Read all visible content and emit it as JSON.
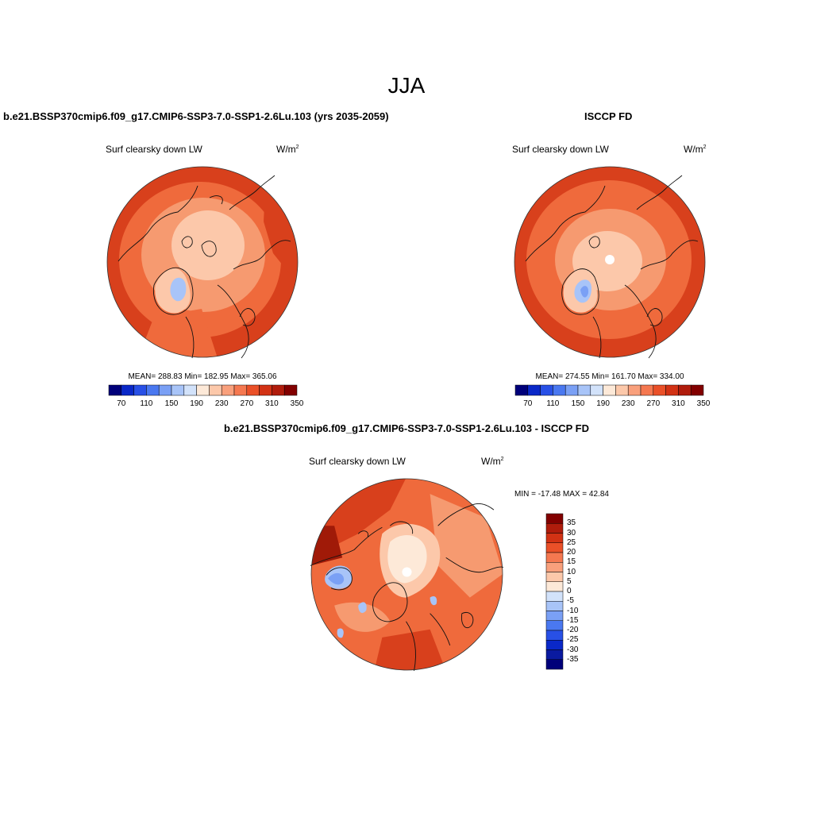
{
  "figure": {
    "title": "JJA",
    "units_base": "W/m",
    "units_exp": "2"
  },
  "panels": [
    {
      "title": "b.e21.BSSP370cmip6.f09_g17.CMIP6-SSP3-7.0-SSP1-2.6Lu.103 (yrs 2035-2059)",
      "variable": "Surf clearsky down LW",
      "stats": "MEAN= 288.83  Min= 182.95  Max= 365.06"
    },
    {
      "title": "ISCCP FD",
      "variable": "Surf clearsky down LW",
      "stats": "MEAN= 274.55  Min= 161.70  Max= 334.00"
    },
    {
      "title": "b.e21.BSSP370cmip6.f09_g17.CMIP6-SSP3-7.0-SSP1-2.6Lu.103 - ISCCP FD",
      "variable": "Surf clearsky down LW",
      "stats": "MIN = -17.48 MAX =  42.84"
    }
  ],
  "colorbar_abs": {
    "labels": [
      "70",
      "110",
      "150",
      "190",
      "230",
      "270",
      "310",
      "350"
    ],
    "colors": [
      "#00007a",
      "#0a28c8",
      "#2850e6",
      "#4a78f0",
      "#7aa0f5",
      "#a8c4f8",
      "#d2e2fa",
      "#fde9d8",
      "#fcc8aa",
      "#f9a07c",
      "#f57850",
      "#ea5028",
      "#d23214",
      "#b01c0c",
      "#820000"
    ]
  },
  "colorbar_diff": {
    "labels": [
      "35",
      "30",
      "25",
      "20",
      "15",
      "10",
      "5",
      "0",
      "-5",
      "-10",
      "-15",
      "-20",
      "-25",
      "-30",
      "-35"
    ],
    "colors": [
      "#820000",
      "#b01c0c",
      "#d23214",
      "#ea5028",
      "#f57850",
      "#f9a07c",
      "#fcc8aa",
      "#fde9d8",
      "#d2e2fa",
      "#a8c4f8",
      "#7aa0f5",
      "#4a78f0",
      "#2850e6",
      "#0a28c8",
      "#0a1aa0",
      "#00007a"
    ]
  },
  "map_colors": {
    "deep": "#d8401c",
    "mid": "#ef6a3c",
    "light": "#f69a70",
    "pale": "#fcc8aa",
    "cream": "#fde9d8",
    "iceblue": "#a8c4f8",
    "blue": "#7aa0f5",
    "darkred": "#a01a08"
  }
}
